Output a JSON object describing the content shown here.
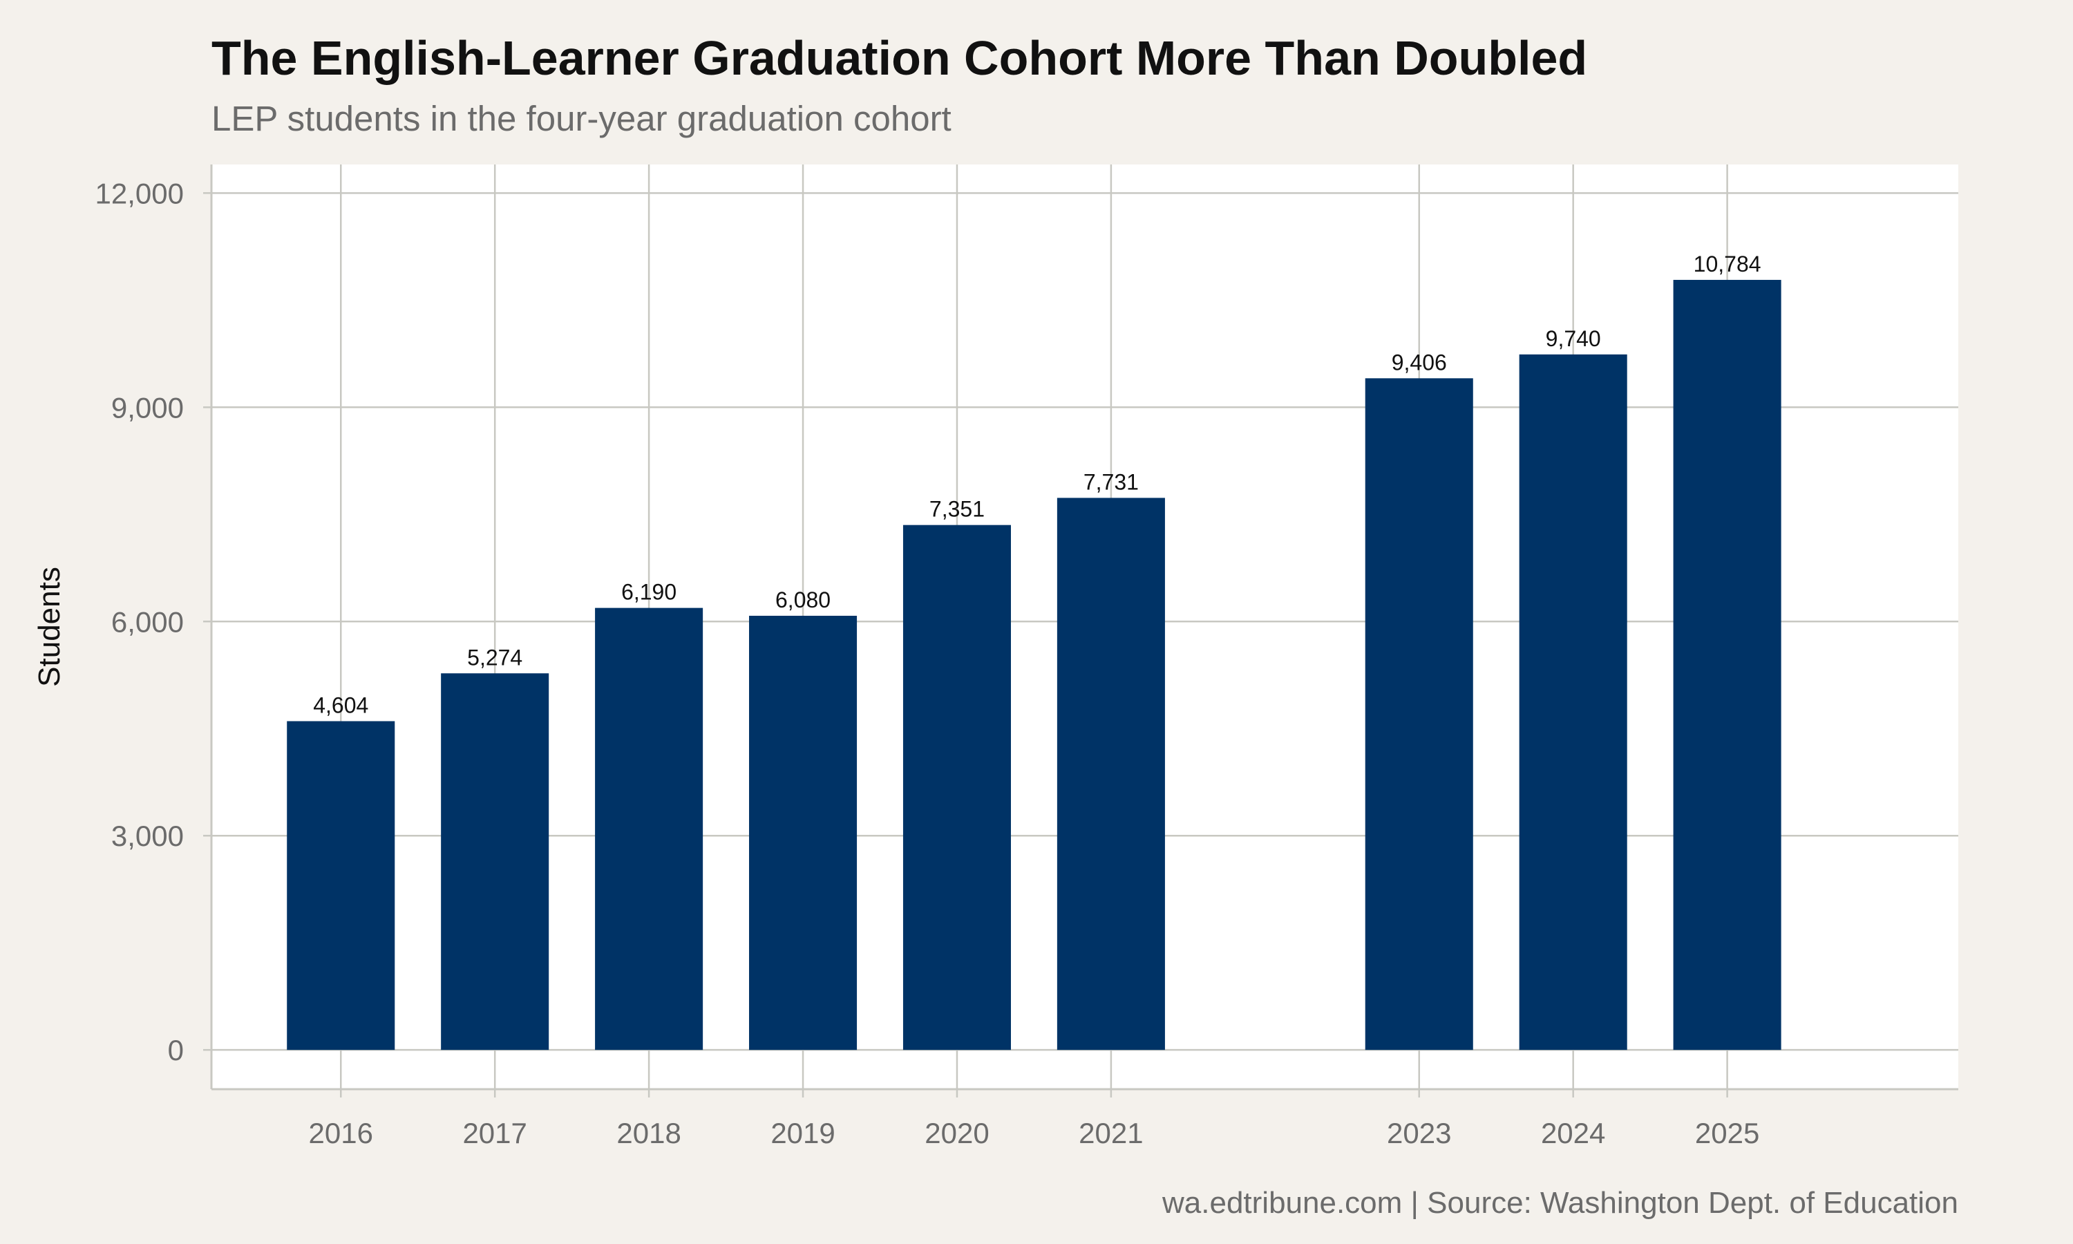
{
  "chart_data": {
    "type": "bar",
    "title": "The English-Learner Graduation Cohort More Than Doubled",
    "subtitle": "LEP students in the four-year graduation cohort",
    "caption": "wa.edtribune.com | Source: Washington Dept. of Education",
    "xlabel": "",
    "ylabel": "Students",
    "categories": [
      "2016",
      "2017",
      "2018",
      "2019",
      "2020",
      "2021",
      "2023",
      "2024",
      "2025"
    ],
    "values": [
      4604,
      5274,
      6190,
      6080,
      7351,
      7731,
      9406,
      9740,
      10784
    ],
    "data_labels": [
      "4,604",
      "5,274",
      "6,190",
      "6,080",
      "7,351",
      "7,731",
      "9,406",
      "9,740",
      "10,784"
    ],
    "x_range": [
      2015.16,
      2026.5
    ],
    "ylim": [
      -550,
      12400
    ],
    "yticks": [
      0,
      3000,
      6000,
      9000,
      12000
    ],
    "ytick_labels": [
      "0",
      "3,000",
      "6,000",
      "9,000",
      "12,000"
    ],
    "grid": true,
    "legend": "none",
    "colors": {
      "bar": "#003366",
      "panel": "#ffffff",
      "background": "#f4f1ec",
      "grid": "#c8c8c2"
    }
  }
}
